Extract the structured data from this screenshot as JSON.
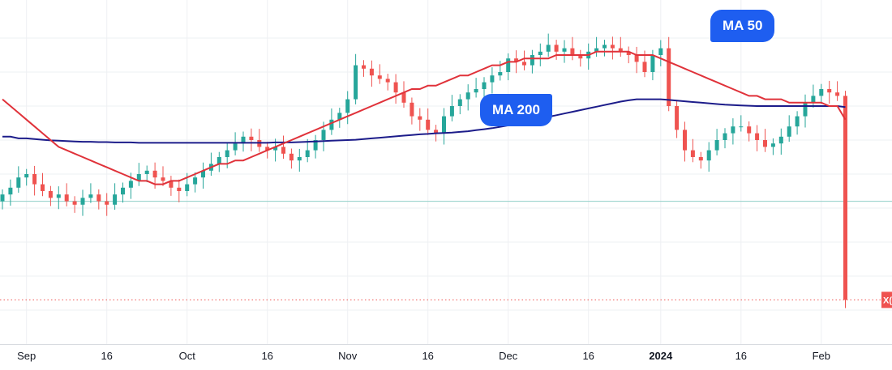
{
  "colors": {
    "up": "#26a69a",
    "down": "#ef5350",
    "ma50": "#e0323a",
    "ma200": "#1c1c8a",
    "grid": "#eef0f3",
    "hline": "#8fcfc7",
    "last_price": "#ef5350",
    "label_bg": "#1e5ef0"
  },
  "labels": {
    "ma50": "MA 50",
    "ma200": "MA 200",
    "last_tag": "X("
  },
  "x_ticks": [
    {
      "i": 3,
      "label": "Sep",
      "bold": false
    },
    {
      "i": 13,
      "label": "16",
      "bold": false
    },
    {
      "i": 23,
      "label": "Oct",
      "bold": false
    },
    {
      "i": 33,
      "label": "16",
      "bold": false
    },
    {
      "i": 43,
      "label": "Nov",
      "bold": false
    },
    {
      "i": 53,
      "label": "16",
      "bold": false
    },
    {
      "i": 63,
      "label": "Dec",
      "bold": false
    },
    {
      "i": 73,
      "label": "16",
      "bold": false
    },
    {
      "i": 82,
      "label": "2024",
      "bold": true
    },
    {
      "i": 92,
      "label": "16",
      "bold": false
    },
    {
      "i": 102,
      "label": "Feb",
      "bold": false
    }
  ],
  "chart_data": {
    "type": "candlestick",
    "ylim": [
      0,
      100
    ],
    "grid": true,
    "reference_line": 42,
    "last_price": 13,
    "closes": [
      44,
      46,
      49,
      50,
      47,
      45,
      43,
      44,
      42,
      41,
      43,
      44,
      42,
      41,
      44,
      46,
      48,
      50,
      51,
      49,
      48,
      46,
      45,
      47,
      49,
      51,
      53,
      55,
      57,
      59,
      61,
      60,
      58,
      57,
      58,
      56,
      54,
      55,
      57,
      60,
      63,
      66,
      68,
      72,
      82,
      81,
      79,
      78,
      77,
      74,
      71,
      67,
      66,
      63,
      62,
      67,
      70,
      72,
      74,
      75,
      77,
      79,
      80,
      84,
      83,
      82,
      85,
      86,
      88,
      86,
      87,
      85,
      84,
      86,
      87,
      88,
      87,
      86,
      85,
      83,
      80,
      85,
      87,
      70,
      63,
      57,
      55,
      54,
      57,
      60,
      62,
      64,
      64,
      62,
      60,
      58,
      59,
      61,
      64,
      67,
      71,
      73,
      75,
      74,
      73,
      13
    ],
    "ma50": [
      72,
      70,
      68,
      66,
      64,
      62,
      60,
      58,
      57,
      56,
      55,
      54,
      53,
      52,
      51,
      50,
      49,
      48,
      48,
      47,
      47,
      48,
      48,
      49,
      50,
      51,
      52,
      53,
      53,
      54,
      54,
      55,
      56,
      57,
      58,
      59,
      60,
      61,
      62,
      63,
      64,
      65,
      66,
      67,
      68,
      69,
      70,
      71,
      72,
      73,
      74,
      75,
      75,
      76,
      76,
      77,
      78,
      79,
      79,
      80,
      81,
      82,
      82,
      83,
      83,
      84,
      84,
      84,
      84,
      85,
      85,
      85,
      85,
      85,
      86,
      86,
      86,
      86,
      86,
      85,
      85,
      85,
      84,
      83,
      82,
      81,
      80,
      79,
      78,
      77,
      76,
      75,
      74,
      73,
      73,
      72,
      72,
      72,
      71,
      71,
      71,
      71,
      71,
      70,
      70,
      66
    ],
    "ma200": [
      61,
      61,
      60.5,
      60.5,
      60.3,
      60.1,
      59.9,
      59.8,
      59.7,
      59.6,
      59.5,
      59.5,
      59.4,
      59.4,
      59.3,
      59.3,
      59.3,
      59.2,
      59.2,
      59.2,
      59.2,
      59.2,
      59.2,
      59.2,
      59.2,
      59.2,
      59.2,
      59.2,
      59.2,
      59.2,
      59.2,
      59.2,
      59.2,
      59.2,
      59.3,
      59.3,
      59.3,
      59.4,
      59.5,
      59.6,
      59.7,
      59.8,
      59.9,
      60,
      60.1,
      60.3,
      60.5,
      60.7,
      60.9,
      61.1,
      61.3,
      61.5,
      61.7,
      61.8,
      62,
      62.1,
      62.2,
      62.4,
      62.6,
      62.9,
      63.2,
      63.5,
      63.9,
      64.3,
      64.8,
      65.3,
      65.8,
      66.3,
      66.8,
      67.3,
      67.8,
      68.3,
      68.8,
      69.3,
      69.8,
      70.3,
      70.8,
      71.3,
      71.7,
      72,
      72,
      72,
      72,
      71.8,
      71.6,
      71.4,
      71.2,
      71,
      70.8,
      70.6,
      70.4,
      70.3,
      70.2,
      70.1,
      70,
      70,
      70,
      70,
      70,
      70,
      70,
      70,
      70,
      70,
      70,
      69.7
    ]
  }
}
